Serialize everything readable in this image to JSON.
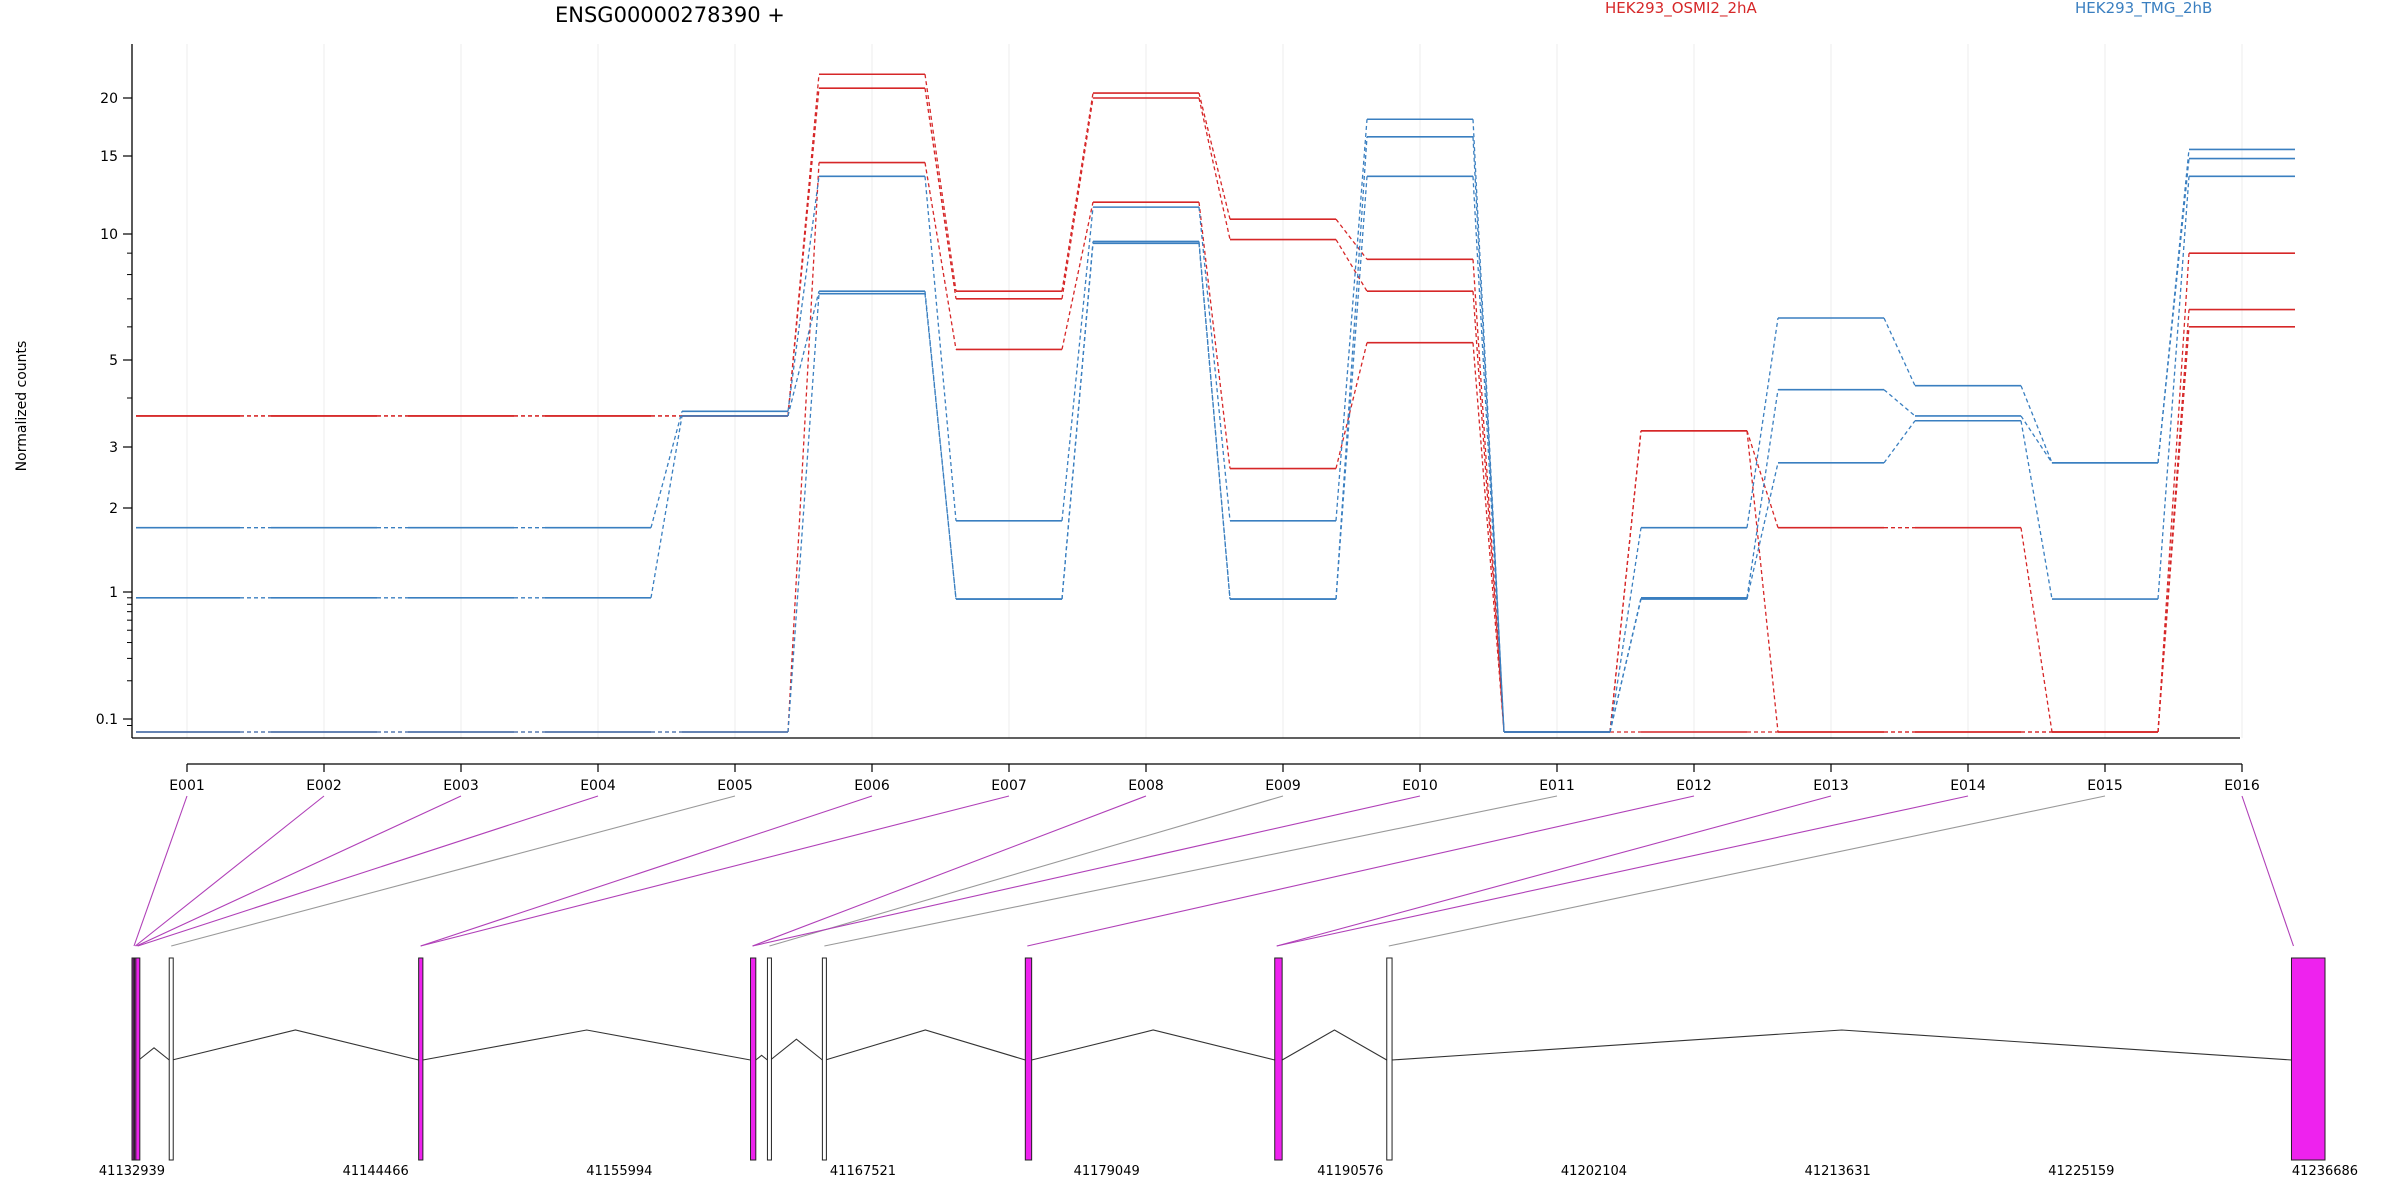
{
  "chart_data": {
    "type": "line",
    "title": "ENSG00000278390 +",
    "ylabel": "Normalized counts",
    "y_scale": "log",
    "y_ticks": [
      "0.1",
      "1",
      "2",
      "3",
      "5",
      "10",
      "15",
      "20"
    ],
    "categories": [
      "E001",
      "E002",
      "E003",
      "E004",
      "E005",
      "E006",
      "E007",
      "E008",
      "E009",
      "E010",
      "E011",
      "E012",
      "E013",
      "E014",
      "E015",
      "E016"
    ],
    "legend": [
      {
        "name": "HEK293_OSMI2_2hA",
        "color": "#d62728"
      },
      {
        "name": "HEK293_TMG_2hB",
        "color": "#3a7fc0"
      }
    ],
    "series": [
      {
        "group": "HEK293_OSMI2_2hA",
        "values": [
          3.6,
          3.6,
          3.6,
          3.6,
          3.6,
          22.5,
          7.3,
          20.5,
          10.8,
          8.7,
          0.08,
          3.3,
          0.08,
          0.08,
          0.08,
          9.0
        ]
      },
      {
        "group": "HEK293_OSMI2_2hA",
        "values": [
          3.6,
          3.6,
          3.6,
          3.6,
          3.6,
          21.0,
          7.0,
          20.0,
          9.7,
          7.3,
          0.08,
          3.3,
          1.7,
          1.7,
          0.08,
          6.6
        ]
      },
      {
        "group": "HEK293_OSMI2_2hA",
        "values": [
          0.08,
          0.08,
          0.08,
          0.08,
          0.08,
          14.5,
          5.3,
          11.8,
          2.6,
          5.5,
          0.08,
          0.08,
          0.08,
          0.08,
          0.08,
          6.0
        ]
      },
      {
        "group": "HEK293_TMG_2hB",
        "values": [
          1.7,
          1.7,
          1.7,
          1.7,
          3.7,
          13.5,
          1.8,
          11.5,
          1.8,
          18.0,
          0.08,
          1.7,
          6.3,
          4.3,
          2.7,
          15.5
        ]
      },
      {
        "group": "HEK293_TMG_2hB",
        "values": [
          0.9,
          0.9,
          0.9,
          0.9,
          3.6,
          7.3,
          0.88,
          9.6,
          0.88,
          16.5,
          0.08,
          0.9,
          4.2,
          3.6,
          2.7,
          14.8
        ]
      },
      {
        "group": "HEK293_TMG_2hB",
        "values": [
          0.08,
          0.08,
          0.08,
          0.08,
          0.08,
          7.2,
          0.88,
          9.5,
          0.88,
          13.5,
          0.08,
          0.88,
          2.7,
          3.5,
          0.88,
          13.5
        ]
      }
    ],
    "gene_model": {
      "coordinate_labels": [
        "41132939",
        "41144466",
        "41155994",
        "41167521",
        "41179049",
        "41190576",
        "41202104",
        "41213631",
        "41225159",
        "41236686"
      ],
      "coordinate_values": [
        41132939,
        41144466,
        41155994,
        41167521,
        41179049,
        41190576,
        41202104,
        41213631,
        41225159,
        41236686
      ],
      "range": [
        41132939,
        41236686
      ],
      "exons": [
        {
          "id": "E001",
          "start": 41132939,
          "end": 41133000,
          "highlight": true
        },
        {
          "id": "E002",
          "start": 41133000,
          "end": 41133060,
          "highlight": true
        },
        {
          "id": "E003",
          "start": 41133060,
          "end": 41133120,
          "highlight": true
        },
        {
          "id": "E004",
          "start": 41133120,
          "end": 41133180,
          "highlight": true
        },
        {
          "id": "E005",
          "start": 41134700,
          "end": 41134790,
          "highlight": false
        },
        {
          "id": "E006",
          "start": 41146500,
          "end": 41146700,
          "highlight": true
        },
        {
          "id": "E007",
          "start": 41146500,
          "end": 41146700,
          "highlight": true
        },
        {
          "id": "E008",
          "start": 41162200,
          "end": 41162450,
          "highlight": true
        },
        {
          "id": "E009",
          "start": 41163000,
          "end": 41163130,
          "highlight": false
        },
        {
          "id": "E010",
          "start": 41162200,
          "end": 41162450,
          "highlight": true
        },
        {
          "id": "E011",
          "start": 41165600,
          "end": 41165700,
          "highlight": false
        },
        {
          "id": "E012",
          "start": 41175200,
          "end": 41175500,
          "highlight": true
        },
        {
          "id": "E013",
          "start": 41187000,
          "end": 41187350,
          "highlight": true
        },
        {
          "id": "E014",
          "start": 41187000,
          "end": 41187350,
          "highlight": true
        },
        {
          "id": "E015",
          "start": 41192300,
          "end": 41192550,
          "highlight": false
        },
        {
          "id": "E016",
          "start": 41235100,
          "end": 41236686,
          "highlight": true
        }
      ],
      "exon_color": "#ee22ee"
    }
  }
}
